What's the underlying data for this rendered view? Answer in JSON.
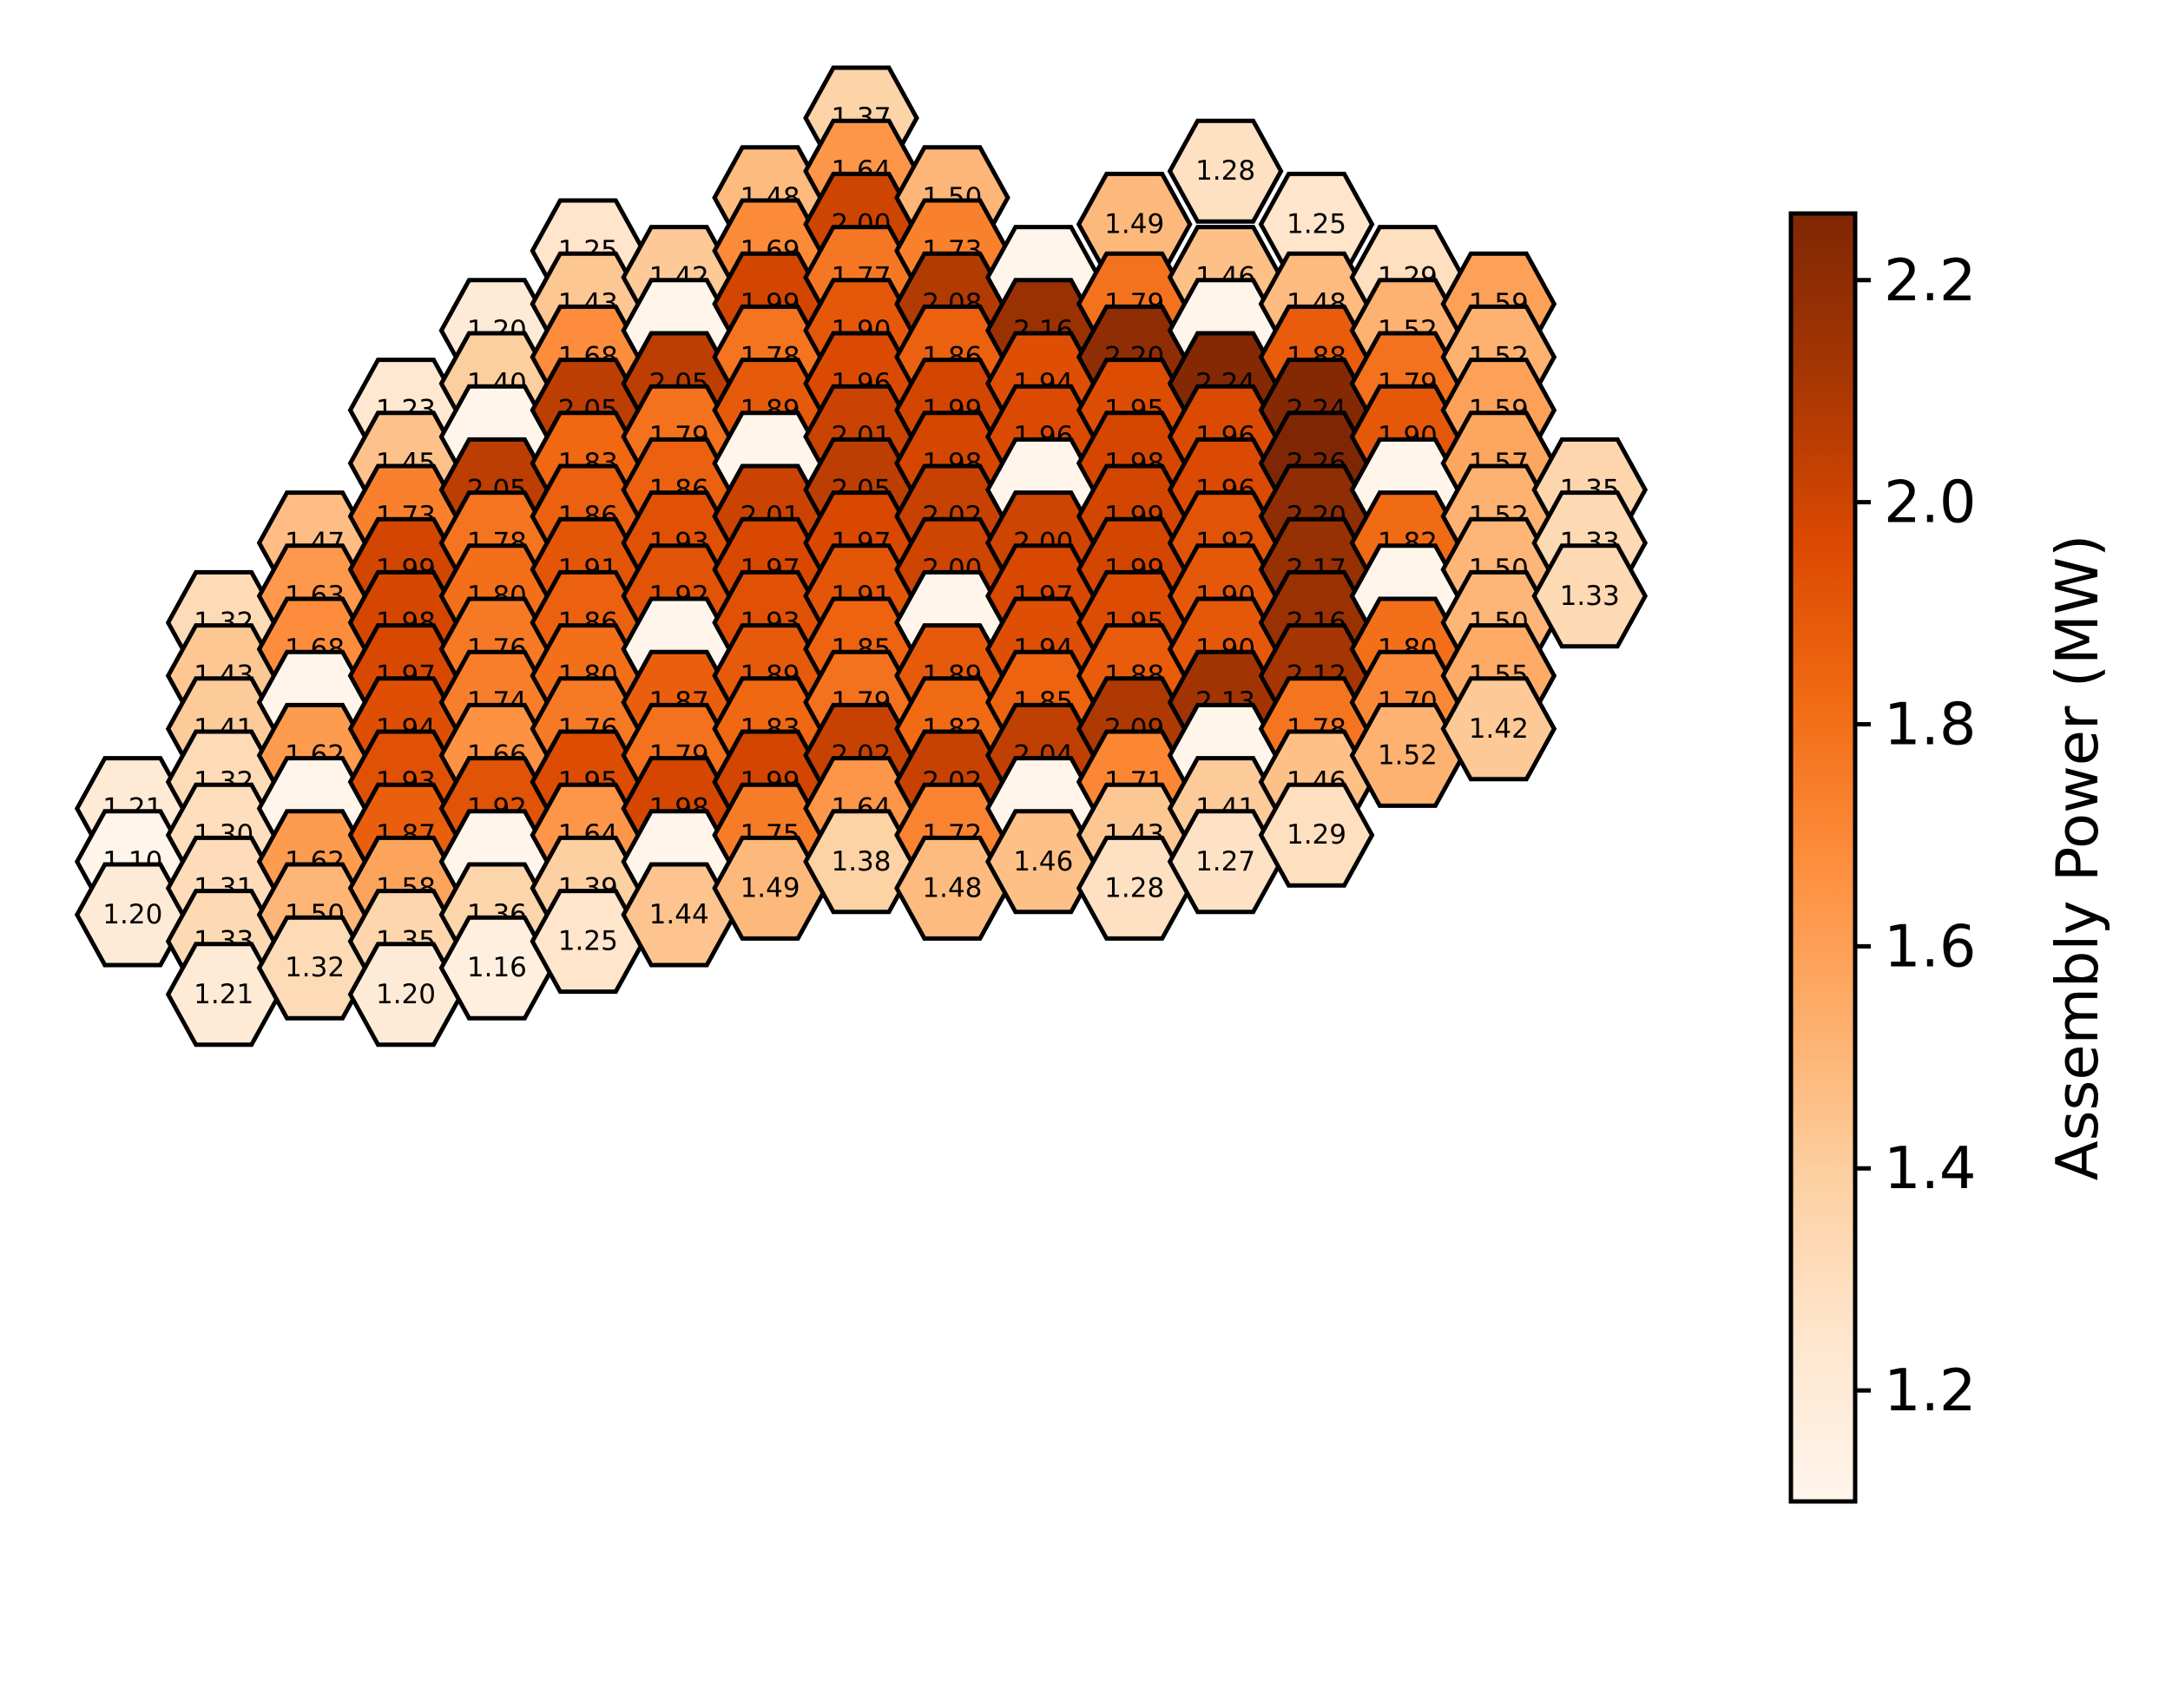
{
  "chart_data": {
    "type": "heatmap",
    "subtype": "hexagonal-core-map",
    "title": "",
    "colormap": "Oranges",
    "colorbar": {
      "label": "Assembly Power (MW)",
      "range": [
        1.1,
        2.26
      ],
      "ticks": [
        "1.2",
        "1.4",
        "1.6",
        "1.8",
        "2.0",
        "2.2"
      ],
      "tick_values": [
        1.2,
        1.4,
        1.6,
        1.8,
        2.0,
        2.2
      ],
      "placement": "right"
    },
    "empty_positions_color": "#fff5eb",
    "columns": [
      {
        "column": -8,
        "cells": [
          [
            2,
            "1.21"
          ],
          [
            0,
            "1.10"
          ],
          [
            -2,
            "1.20"
          ]
        ]
      },
      {
        "column": -7,
        "cells": [
          [
            9,
            "1.32"
          ],
          [
            7,
            "1.43"
          ],
          [
            5,
            "1.41"
          ],
          [
            3,
            "1.32"
          ],
          [
            1,
            "1.30"
          ],
          [
            -1,
            "1.31"
          ],
          [
            -3,
            "1.33"
          ],
          [
            -5,
            "1.21"
          ]
        ]
      },
      {
        "column": -6,
        "cells": [
          [
            12,
            "1.47"
          ],
          [
            10,
            "1.63"
          ],
          [
            8,
            "1.68"
          ],
          [
            6,
            null
          ],
          [
            4,
            "1.62"
          ],
          [
            2,
            null
          ],
          [
            0,
            "1.62"
          ],
          [
            -2,
            "1.50"
          ],
          [
            -4,
            "1.32"
          ]
        ]
      },
      {
        "column": -5,
        "cells": [
          [
            17,
            "1.23"
          ],
          [
            15,
            "1.45"
          ],
          [
            13,
            "1.73"
          ],
          [
            11,
            "1.99"
          ],
          [
            9,
            "1.98"
          ],
          [
            7,
            "1.97"
          ],
          [
            5,
            "1.94"
          ],
          [
            3,
            "1.93"
          ],
          [
            1,
            "1.87"
          ],
          [
            -1,
            "1.58"
          ],
          [
            -3,
            "1.35"
          ],
          [
            -5,
            "1.20"
          ]
        ]
      },
      {
        "column": -4,
        "cells": [
          [
            20,
            "1.20"
          ],
          [
            18,
            "1.40"
          ],
          [
            16,
            null
          ],
          [
            14,
            "2.05"
          ],
          [
            12,
            "1.78"
          ],
          [
            10,
            "1.80"
          ],
          [
            8,
            "1.76"
          ],
          [
            6,
            "1.74"
          ],
          [
            4,
            "1.66"
          ],
          [
            2,
            "1.92"
          ],
          [
            0,
            null
          ],
          [
            -2,
            "1.36"
          ],
          [
            -4,
            "1.16"
          ]
        ]
      },
      {
        "column": -3,
        "cells": [
          [
            23,
            "1.25"
          ],
          [
            21,
            "1.43"
          ],
          [
            19,
            "1.68"
          ],
          [
            17,
            "2.05"
          ],
          [
            15,
            "1.83"
          ],
          [
            13,
            "1.86"
          ],
          [
            11,
            "1.91"
          ],
          [
            9,
            "1.86"
          ],
          [
            7,
            "1.80"
          ],
          [
            5,
            "1.76"
          ],
          [
            3,
            "1.95"
          ],
          [
            1,
            "1.64"
          ],
          [
            -1,
            "1.39"
          ],
          [
            -3,
            "1.25"
          ]
        ]
      },
      {
        "column": -2,
        "cells": [
          [
            22,
            "1.42"
          ],
          [
            20,
            null
          ],
          [
            18,
            "2.05"
          ],
          [
            16,
            "1.79"
          ],
          [
            14,
            "1.86"
          ],
          [
            12,
            "1.93"
          ],
          [
            10,
            "1.92"
          ],
          [
            8,
            null
          ],
          [
            6,
            "1.87"
          ],
          [
            4,
            "1.79"
          ],
          [
            2,
            "1.98"
          ],
          [
            0,
            null
          ],
          [
            -2,
            "1.44"
          ]
        ]
      },
      {
        "column": -1,
        "cells": [
          [
            25,
            "1.48"
          ],
          [
            23,
            "1.69"
          ],
          [
            21,
            "1.99"
          ],
          [
            19,
            "1.78"
          ],
          [
            17,
            "1.89"
          ],
          [
            15,
            null
          ],
          [
            13,
            "2.01"
          ],
          [
            11,
            "1.97"
          ],
          [
            9,
            "1.93"
          ],
          [
            7,
            "1.89"
          ],
          [
            5,
            "1.83"
          ],
          [
            3,
            "1.99"
          ],
          [
            1,
            "1.75"
          ],
          [
            -1,
            "1.49"
          ]
        ]
      },
      {
        "column": 0,
        "cells": [
          [
            28,
            "1.37"
          ],
          [
            26,
            "1.64"
          ],
          [
            24,
            "2.00"
          ],
          [
            22,
            "1.77"
          ],
          [
            20,
            "1.90"
          ],
          [
            18,
            "1.96"
          ],
          [
            16,
            "2.01"
          ],
          [
            14,
            "2.05"
          ],
          [
            12,
            "1.97"
          ],
          [
            10,
            "1.91"
          ],
          [
            8,
            "1.85"
          ],
          [
            6,
            "1.79"
          ],
          [
            4,
            "2.02"
          ],
          [
            2,
            "1.64"
          ],
          [
            0,
            "1.38"
          ]
        ]
      },
      {
        "column": 1,
        "cells": [
          [
            25,
            "1.50"
          ],
          [
            23,
            "1.73"
          ],
          [
            21,
            "2.08"
          ],
          [
            19,
            "1.86"
          ],
          [
            17,
            "1.99"
          ],
          [
            15,
            "1.98"
          ],
          [
            13,
            "2.02"
          ],
          [
            11,
            "2.00"
          ],
          [
            9,
            null
          ],
          [
            7,
            "1.89"
          ],
          [
            5,
            "1.82"
          ],
          [
            3,
            "2.02"
          ],
          [
            1,
            "1.72"
          ],
          [
            -1,
            "1.48"
          ]
        ]
      },
      {
        "column": 2,
        "cells": [
          [
            22,
            null
          ],
          [
            20,
            "2.16"
          ],
          [
            18,
            "1.94"
          ],
          [
            16,
            "1.96"
          ],
          [
            14,
            null
          ],
          [
            12,
            "2.00"
          ],
          [
            10,
            "1.97"
          ],
          [
            8,
            "1.94"
          ],
          [
            6,
            "1.85"
          ],
          [
            4,
            "2.04"
          ],
          [
            2,
            null
          ],
          [
            0,
            "1.46"
          ]
        ]
      },
      {
        "column": 3,
        "cells": [
          [
            24,
            "1.49"
          ],
          [
            21,
            "1.79"
          ],
          [
            19,
            "2.20"
          ],
          [
            17,
            "1.95"
          ],
          [
            15,
            "1.98"
          ],
          [
            13,
            "1.99"
          ],
          [
            11,
            "1.99"
          ],
          [
            9,
            "1.95"
          ],
          [
            7,
            "1.88"
          ],
          [
            5,
            "2.09"
          ],
          [
            3,
            "1.71"
          ],
          [
            1,
            "1.43"
          ],
          [
            -1,
            "1.28"
          ]
        ]
      },
      {
        "column": 4,
        "cells": [
          [
            26,
            "1.28"
          ],
          [
            22,
            "1.46"
          ],
          [
            20,
            null
          ],
          [
            18,
            "2.24"
          ],
          [
            16,
            "1.96"
          ],
          [
            14,
            "1.96"
          ],
          [
            12,
            "1.92"
          ],
          [
            10,
            "1.90"
          ],
          [
            8,
            "1.90"
          ],
          [
            6,
            "2.13"
          ],
          [
            4,
            null
          ],
          [
            2,
            "1.41"
          ],
          [
            0,
            "1.27"
          ]
        ]
      },
      {
        "column": 5,
        "cells": [
          [
            24,
            "1.25"
          ],
          [
            21,
            "1.48"
          ],
          [
            19,
            "1.88"
          ],
          [
            17,
            "2.24"
          ],
          [
            15,
            "2.26"
          ],
          [
            13,
            "2.20"
          ],
          [
            11,
            "2.17"
          ],
          [
            9,
            "2.16"
          ],
          [
            7,
            "2.12"
          ],
          [
            5,
            "1.78"
          ],
          [
            3,
            "1.46"
          ],
          [
            1,
            "1.29"
          ]
        ]
      },
      {
        "column": 6,
        "cells": [
          [
            22,
            "1.29"
          ],
          [
            20,
            "1.52"
          ],
          [
            18,
            "1.79"
          ],
          [
            16,
            "1.90"
          ],
          [
            14,
            null
          ],
          [
            12,
            "1.82"
          ],
          [
            10,
            null
          ],
          [
            8,
            "1.80"
          ],
          [
            6,
            "1.70"
          ],
          [
            4,
            "1.52"
          ]
        ]
      },
      {
        "column": 7,
        "cells": [
          [
            21,
            "1.59"
          ],
          [
            19,
            "1.52"
          ],
          [
            17,
            "1.59"
          ],
          [
            15,
            "1.57"
          ],
          [
            13,
            "1.52"
          ],
          [
            11,
            "1.50"
          ],
          [
            9,
            "1.50"
          ],
          [
            7,
            "1.55"
          ],
          [
            5,
            "1.42"
          ]
        ]
      },
      {
        "column": 8,
        "cells": [
          [
            14,
            "1.35"
          ],
          [
            12,
            "1.33"
          ],
          [
            10,
            "1.33"
          ]
        ]
      }
    ]
  }
}
